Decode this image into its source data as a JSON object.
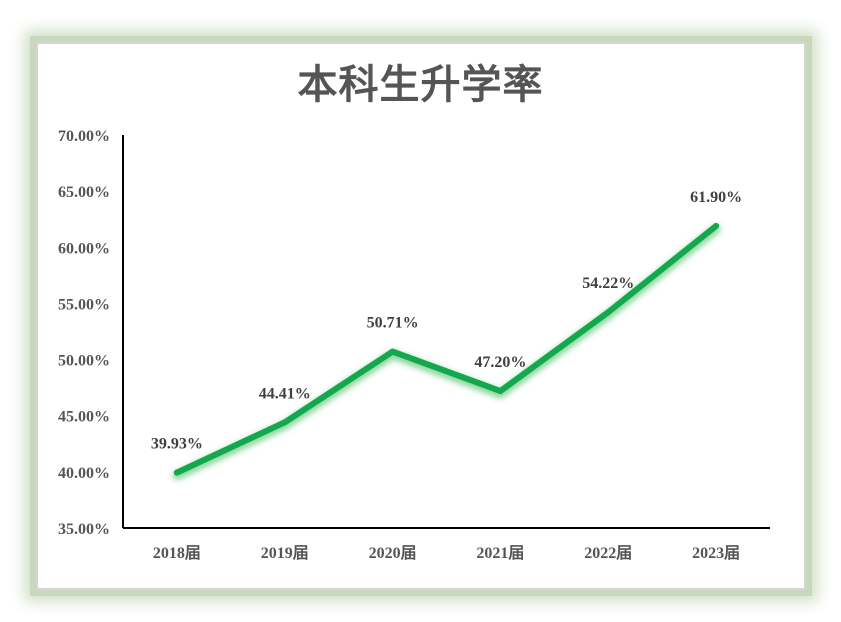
{
  "chart_data": {
    "type": "line",
    "title": "本科生升学率",
    "categories": [
      "2018届",
      "2019届",
      "2020届",
      "2021届",
      "2022届",
      "2023届"
    ],
    "series": [
      {
        "values": [
          39.93,
          44.41,
          50.71,
          47.2,
          54.22,
          61.9
        ]
      }
    ],
    "data_labels": [
      "39.93%",
      "44.41%",
      "50.71%",
      "47.20%",
      "54.22%",
      "61.90%"
    ],
    "yticks": [
      "35.00%",
      "40.00%",
      "45.00%",
      "50.00%",
      "55.00%",
      "60.00%",
      "65.00%",
      "70.00%"
    ],
    "ylim": [
      35,
      70
    ],
    "xlabel": "",
    "ylabel": "",
    "grid": false,
    "legend": "none",
    "line_color": "#14a84e",
    "frame_color": "#c8d8bc"
  }
}
